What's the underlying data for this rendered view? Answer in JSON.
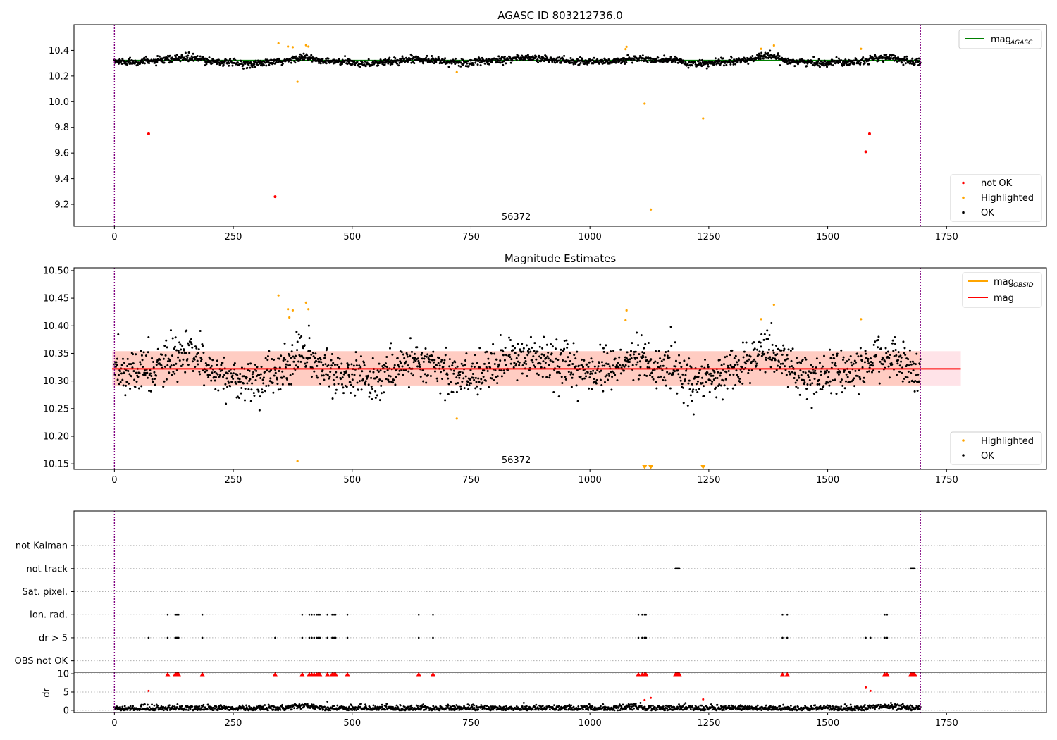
{
  "figure": {
    "colors": {
      "ok": "#000000",
      "not_ok": "#ff0000",
      "highlighted": "#ffa500",
      "agasc_line": "#008000",
      "mag_line": "#ff0000",
      "obsid_line": "#ffa500",
      "band_pink": "#ffc0cb",
      "band_orange": "#ffa07a",
      "interval": "#800080",
      "grid": "#b0b0b0"
    }
  },
  "chart_data": [
    {
      "id": "agasc",
      "type": "scatter",
      "title": "AGASC ID 803212736.0",
      "xlim": [
        -85,
        1960
      ],
      "ylim": [
        9.03,
        10.6
      ],
      "xticks": [
        0,
        250,
        500,
        750,
        1000,
        1250,
        1500,
        1750
      ],
      "yticks": [
        9.2,
        9.4,
        9.6,
        9.8,
        10.0,
        10.2,
        10.4
      ],
      "ytick_labels": [
        "9.2",
        "9.4",
        "9.6",
        "9.8",
        "10.0",
        "10.2",
        "10.4"
      ],
      "annotation": "56372",
      "annotation_x": 845,
      "interval": [
        0,
        1695
      ],
      "baseline": {
        "value": 10.322,
        "x": [
          0,
          1695
        ]
      },
      "legend_top": [
        {
          "label": "mag",
          "sub": "AGASC",
          "kind": "line",
          "color": "#008000"
        }
      ],
      "legend_bottom": [
        {
          "label": "not OK",
          "color": "#ff0000"
        },
        {
          "label": "Highlighted",
          "color": "#ffa500"
        },
        {
          "label": "OK",
          "color": "#000000"
        }
      ],
      "series": [
        {
          "name": "not OK",
          "color": "#ff0000",
          "points": [
            [
              72,
              9.75
            ],
            [
              338,
              9.26
            ],
            [
              1580,
              9.61
            ],
            [
              1588,
              9.75
            ]
          ]
        },
        {
          "name": "Highlighted",
          "color": "#ffa500",
          "points": [
            [
              345,
              10.455
            ],
            [
              365,
              10.43
            ],
            [
              375,
              10.425
            ],
            [
              385,
              10.155
            ],
            [
              403,
              10.44
            ],
            [
              408,
              10.43
            ],
            [
              720,
              10.23
            ],
            [
              1075,
              10.41
            ],
            [
              1077,
              10.428
            ],
            [
              1115,
              9.985
            ],
            [
              1128,
              9.16
            ],
            [
              1238,
              9.87
            ],
            [
              1360,
              10.412
            ],
            [
              1387,
              10.438
            ],
            [
              1570,
              10.412
            ]
          ]
        },
        {
          "name": "OK",
          "color": "#000000",
          "band": {
            "x": [
              0,
              1695
            ],
            "count": 1700
          }
        }
      ]
    },
    {
      "id": "estimates",
      "type": "scatter",
      "title": "Magnitude Estimates",
      "xlim": [
        -85,
        1960
      ],
      "ylim": [
        10.14,
        10.505
      ],
      "xticks": [
        0,
        250,
        500,
        750,
        1000,
        1250,
        1500,
        1750
      ],
      "yticks": [
        10.15,
        10.2,
        10.25,
        10.3,
        10.35,
        10.4,
        10.45,
        10.5
      ],
      "ytick_labels": [
        "10.15",
        "10.20",
        "10.25",
        "10.30",
        "10.35",
        "10.40",
        "10.45",
        "10.50"
      ],
      "annotation": "56372",
      "annotation_x": 845,
      "interval": [
        0,
        1695
      ],
      "mag_line": {
        "value": 10.322,
        "x": [
          -5,
          1780
        ]
      },
      "band_pink": {
        "y": [
          10.292,
          10.354
        ],
        "x": [
          -5,
          1780
        ]
      },
      "band_orange": {
        "y": [
          10.292,
          10.354
        ],
        "x": [
          0,
          1695
        ]
      },
      "legend_top": [
        {
          "label": "mag",
          "sub": "OBSID",
          "kind": "line",
          "color": "#ffa500"
        },
        {
          "label": "mag",
          "sub": "",
          "kind": "line",
          "color": "#ff0000"
        }
      ],
      "legend_bottom": [
        {
          "label": "Highlighted",
          "color": "#ffa500"
        },
        {
          "label": "OK",
          "color": "#000000"
        }
      ],
      "series": [
        {
          "name": "Highlighted",
          "color": "#ffa500",
          "points": [
            [
              345,
              10.455
            ],
            [
              365,
              10.43
            ],
            [
              368,
              10.415
            ],
            [
              375,
              10.428
            ],
            [
              385,
              10.155
            ],
            [
              403,
              10.442
            ],
            [
              408,
              10.43
            ],
            [
              720,
              10.232
            ],
            [
              1075,
              10.41
            ],
            [
              1077,
              10.428
            ],
            [
              1360,
              10.412
            ],
            [
              1387,
              10.438
            ],
            [
              1570,
              10.412
            ]
          ]
        },
        {
          "name": "Highlighted (below range)",
          "color": "#ffa500",
          "marker": "triangle-down",
          "points": [
            [
              1115,
              10.142
            ],
            [
              1128,
              10.142
            ],
            [
              1238,
              10.142
            ]
          ]
        },
        {
          "name": "OK",
          "color": "#000000",
          "band": {
            "x": [
              0,
              1695
            ],
            "count": 1700
          }
        }
      ]
    },
    {
      "id": "flags",
      "type": "scatter",
      "title": "",
      "xlim": [
        -85,
        1960
      ],
      "ylim": [
        -0.5,
        6.5
      ],
      "xticks": [],
      "categories": [
        "OBS not OK",
        "dr > 5",
        "Ion. rad.",
        "Sat. pixel.",
        "not track",
        "not Kalman"
      ],
      "interval": [
        0,
        1695
      ],
      "series": [
        {
          "name": "dr > 5",
          "color": "#000000",
          "x": [
            72,
            112,
            128,
            130,
            132,
            135,
            185,
            338,
            395,
            410,
            415,
            420,
            425,
            428,
            432,
            448,
            458,
            462,
            465,
            490,
            640,
            670,
            1102,
            1110,
            1115,
            1118,
            1405,
            1415,
            1580,
            1590,
            1620,
            1625
          ]
        },
        {
          "name": "Ion. rad.",
          "color": "#000000",
          "x": [
            112,
            128,
            130,
            132,
            135,
            185,
            395,
            410,
            415,
            420,
            425,
            428,
            432,
            448,
            458,
            462,
            465,
            490,
            640,
            670,
            1102,
            1110,
            1115,
            1118,
            1405,
            1415,
            1620,
            1625
          ]
        },
        {
          "name": "not track",
          "color": "#000000",
          "x": [
            1180,
            1182,
            1184,
            1186,
            1188,
            1675,
            1677,
            1679,
            1681,
            1683
          ]
        }
      ]
    },
    {
      "id": "dr",
      "type": "scatter",
      "title": "",
      "xlim": [
        -85,
        1960
      ],
      "ylim": [
        -0.6,
        10.4
      ],
      "xticks": [
        0,
        250,
        500,
        750,
        1000,
        1250,
        1500,
        1750
      ],
      "yticks": [
        0,
        5,
        10
      ],
      "ytick_labels": [
        "0",
        "5",
        "10"
      ],
      "ylabel": "dr",
      "interval": [
        0,
        1695
      ],
      "series": [
        {
          "name": "dr > 5 (clipped)",
          "color": "#ff0000",
          "marker": "triangle-up",
          "x": [
            112,
            128,
            130,
            132,
            135,
            185,
            338,
            395,
            410,
            415,
            420,
            425,
            428,
            432,
            448,
            458,
            462,
            465,
            490,
            640,
            670,
            1102,
            1110,
            1115,
            1118,
            1180,
            1182,
            1184,
            1186,
            1188,
            1405,
            1415,
            1620,
            1625,
            1675,
            1677,
            1679,
            1681,
            1683
          ]
        },
        {
          "name": "dr outliers",
          "color": "#ff0000",
          "points": [
            [
              72,
              5.3
            ],
            [
              1115,
              2.8
            ],
            [
              1128,
              3.4
            ],
            [
              1238,
              3.0
            ],
            [
              1580,
              6.3
            ],
            [
              1590,
              5.3
            ]
          ]
        },
        {
          "name": "OK",
          "color": "#000000",
          "band": {
            "x": [
              0,
              1695
            ],
            "count": 1700
          }
        },
        {
          "name": "OK scattered",
          "color": "#000000",
          "points": [
            [
              448,
              2.4
            ]
          ]
        }
      ]
    }
  ]
}
